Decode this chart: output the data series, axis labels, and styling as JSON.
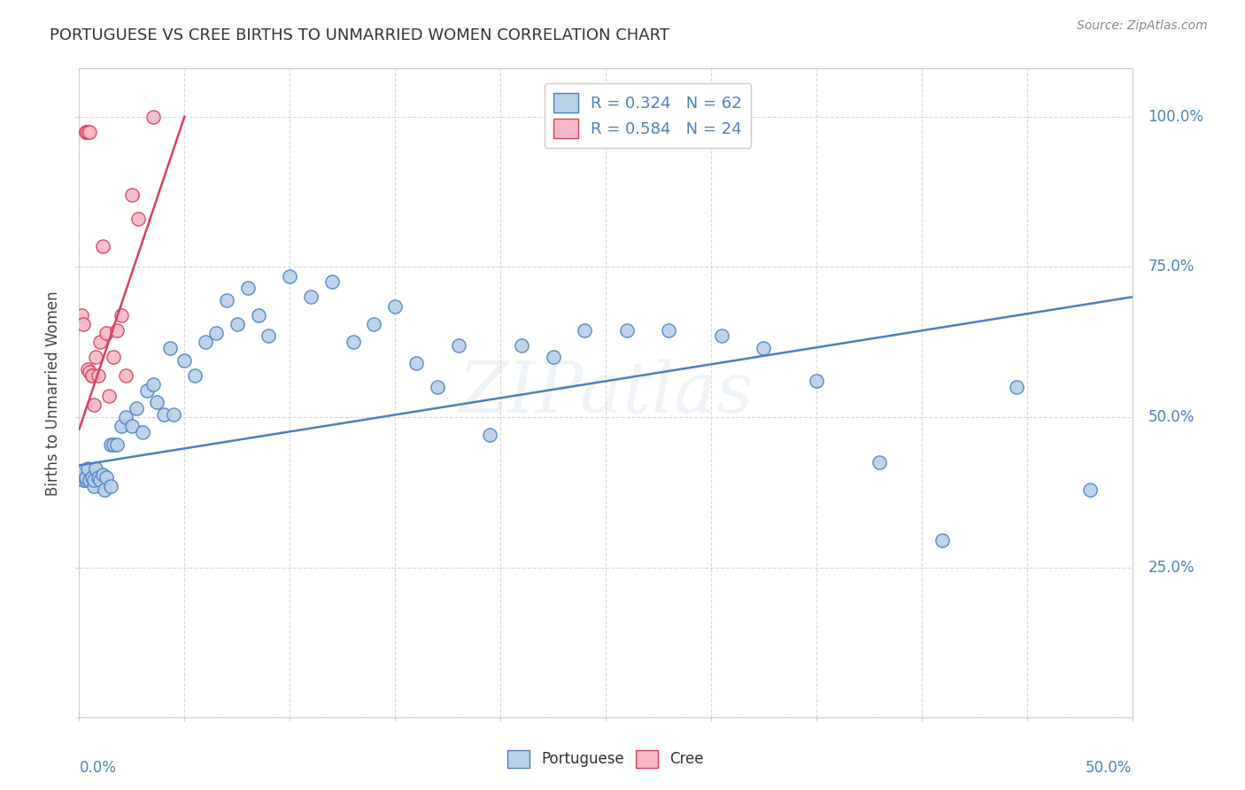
{
  "title": "PORTUGUESE VS CREE BIRTHS TO UNMARRIED WOMEN CORRELATION CHART",
  "source": "Source: ZipAtlas.com",
  "ylabel": "Births to Unmarried Women",
  "xlim": [
    0.0,
    0.5
  ],
  "ylim": [
    0.0,
    1.08
  ],
  "portuguese_R": 0.324,
  "portuguese_N": 62,
  "cree_R": 0.584,
  "cree_N": 24,
  "portuguese_color": "#b8d0e8",
  "cree_color": "#f5b8c4",
  "trend_portuguese_color": "#4a80c0",
  "trend_cree_color": "#d84060",
  "watermark": "ZIPatlas",
  "port_trend_x0": 0.0,
  "port_trend_y0": 0.42,
  "port_trend_x1": 0.5,
  "port_trend_y1": 0.7,
  "cree_trend_x0": 0.0,
  "cree_trend_y0": 0.48,
  "cree_trend_x1": 0.05,
  "cree_trend_y1": 1.0,
  "portuguese_x": [
    0.001,
    0.002,
    0.002,
    0.003,
    0.003,
    0.004,
    0.005,
    0.006,
    0.007,
    0.007,
    0.008,
    0.009,
    0.01,
    0.011,
    0.012,
    0.013,
    0.015,
    0.015,
    0.016,
    0.018,
    0.02,
    0.022,
    0.025,
    0.027,
    0.03,
    0.032,
    0.035,
    0.037,
    0.04,
    0.043,
    0.045,
    0.05,
    0.055,
    0.06,
    0.065,
    0.07,
    0.075,
    0.08,
    0.085,
    0.09,
    0.1,
    0.11,
    0.12,
    0.13,
    0.14,
    0.15,
    0.16,
    0.17,
    0.18,
    0.195,
    0.21,
    0.225,
    0.24,
    0.26,
    0.28,
    0.305,
    0.325,
    0.35,
    0.38,
    0.41,
    0.445,
    0.48
  ],
  "portuguese_y": [
    0.405,
    0.395,
    0.41,
    0.395,
    0.4,
    0.415,
    0.395,
    0.4,
    0.385,
    0.395,
    0.415,
    0.4,
    0.395,
    0.405,
    0.38,
    0.4,
    0.385,
    0.455,
    0.455,
    0.455,
    0.485,
    0.5,
    0.485,
    0.515,
    0.475,
    0.545,
    0.555,
    0.525,
    0.505,
    0.615,
    0.505,
    0.595,
    0.57,
    0.625,
    0.64,
    0.695,
    0.655,
    0.715,
    0.67,
    0.635,
    0.735,
    0.7,
    0.725,
    0.625,
    0.655,
    0.685,
    0.59,
    0.55,
    0.62,
    0.47,
    0.62,
    0.6,
    0.645,
    0.645,
    0.645,
    0.635,
    0.615,
    0.56,
    0.425,
    0.295,
    0.55,
    0.38
  ],
  "cree_x": [
    0.001,
    0.002,
    0.003,
    0.003,
    0.004,
    0.004,
    0.005,
    0.005,
    0.006,
    0.006,
    0.007,
    0.008,
    0.009,
    0.01,
    0.011,
    0.013,
    0.014,
    0.016,
    0.018,
    0.02,
    0.022,
    0.025,
    0.028,
    0.035
  ],
  "cree_y": [
    0.67,
    0.655,
    0.975,
    0.975,
    0.975,
    0.58,
    0.975,
    0.575,
    0.57,
    0.57,
    0.52,
    0.6,
    0.57,
    0.625,
    0.785,
    0.64,
    0.535,
    0.6,
    0.645,
    0.67,
    0.57,
    0.87,
    0.83,
    1.0
  ]
}
